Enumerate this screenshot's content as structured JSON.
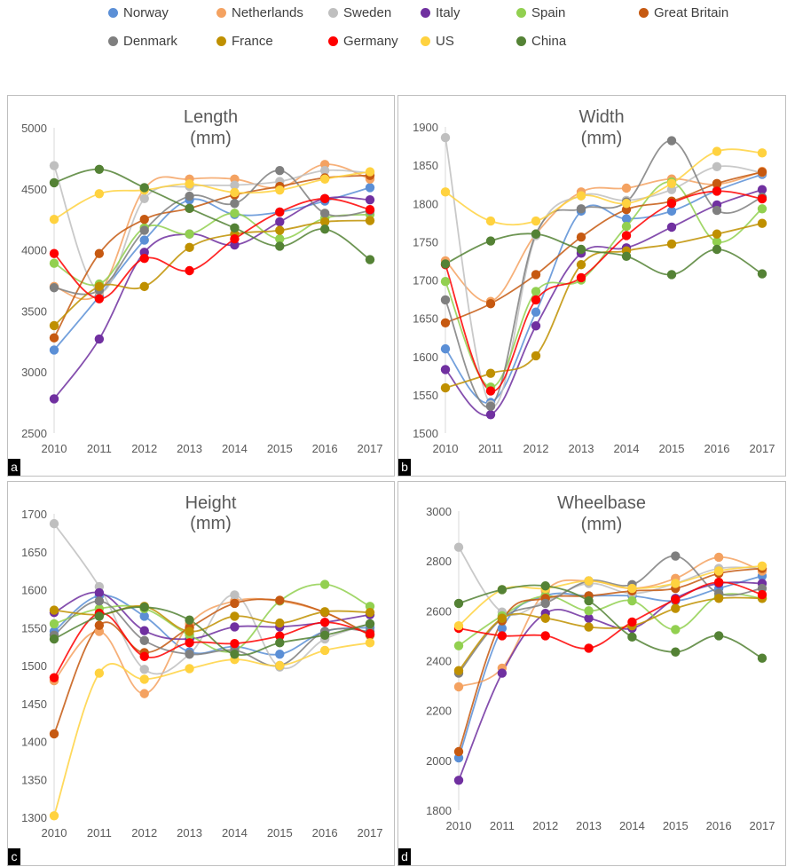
{
  "legend": [
    {
      "name": "Norway",
      "color": "#5b8fd6"
    },
    {
      "name": "Netherlands",
      "color": "#f4a261"
    },
    {
      "name": "Sweden",
      "color": "#bfbfbf"
    },
    {
      "name": "Italy",
      "color": "#7030a0"
    },
    {
      "name": "Spain",
      "color": "#92d050"
    },
    {
      "name": "Great Britain",
      "color": "#c65911"
    },
    {
      "name": "Denmark",
      "color": "#7f7f7f"
    },
    {
      "name": "France",
      "color": "#bf9000"
    },
    {
      "name": "Germany",
      "color": "#ff0000"
    },
    {
      "name": "US",
      "color": "#ffd23f"
    },
    {
      "name": "China",
      "color": "#548235"
    }
  ],
  "chart_data": [
    {
      "type": "line",
      "panel": "a",
      "title": "Length",
      "subtitle": "(mm)",
      "categories": [
        "2010",
        "2011",
        "2012",
        "2013",
        "2014",
        "2015",
        "2016",
        "2017"
      ],
      "ylim": [
        2500,
        5000
      ],
      "yticks": [
        2500,
        3000,
        3500,
        4000,
        4500,
        5000
      ],
      "series": [
        {
          "name": "Norway",
          "values": [
            3180,
            3620,
            4080,
            4410,
            4290,
            4310,
            4400,
            4510
          ]
        },
        {
          "name": "Netherlands",
          "values": [
            3700,
            3650,
            4500,
            4580,
            4580,
            4510,
            4700,
            4580
          ]
        },
        {
          "name": "Sweden",
          "values": [
            4690,
            3660,
            4420,
            4520,
            4530,
            4560,
            4650,
            4630
          ]
        },
        {
          "name": "Italy",
          "values": [
            2780,
            3270,
            3980,
            4130,
            4040,
            4230,
            4420,
            4410
          ]
        },
        {
          "name": "Spain",
          "values": [
            3890,
            3720,
            4180,
            4130,
            4300,
            4090,
            4260,
            4290
          ]
        },
        {
          "name": "Great Britain",
          "values": [
            3280,
            3970,
            4250,
            4340,
            4450,
            4520,
            4590,
            4610
          ]
        },
        {
          "name": "Denmark",
          "values": [
            3690,
            3670,
            4160,
            4440,
            4380,
            4650,
            4300,
            4320
          ]
        },
        {
          "name": "France",
          "values": [
            3380,
            3700,
            3700,
            4020,
            4130,
            4160,
            4230,
            4240
          ]
        },
        {
          "name": "Germany",
          "values": [
            3970,
            3600,
            3930,
            3830,
            4090,
            4310,
            4420,
            4330
          ]
        },
        {
          "name": "US",
          "values": [
            4250,
            4460,
            4490,
            4540,
            4470,
            4490,
            4580,
            4640
          ]
        },
        {
          "name": "China",
          "values": [
            4550,
            4660,
            4510,
            4340,
            4180,
            4030,
            4170,
            3920
          ]
        }
      ]
    },
    {
      "type": "line",
      "panel": "b",
      "title": "Width",
      "subtitle": "(mm)",
      "categories": [
        "2010",
        "2011",
        "2012",
        "2013",
        "2014",
        "2015",
        "2016",
        "2017"
      ],
      "ylim": [
        1500,
        1900
      ],
      "yticks": [
        1500,
        1550,
        1600,
        1650,
        1700,
        1750,
        1800,
        1850,
        1900
      ],
      "series": [
        {
          "name": "Norway",
          "values": [
            1610,
            1540,
            1658,
            1790,
            1780,
            1790,
            1817,
            1838
          ]
        },
        {
          "name": "Netherlands",
          "values": [
            1725,
            1672,
            1760,
            1815,
            1820,
            1832,
            1825,
            1842
          ]
        },
        {
          "name": "Sweden",
          "values": [
            1886,
            1537,
            1758,
            1810,
            1804,
            1818,
            1848,
            1840
          ]
        },
        {
          "name": "Italy",
          "values": [
            1583,
            1524,
            1640,
            1735,
            1742,
            1769,
            1798,
            1818
          ]
        },
        {
          "name": "Spain",
          "values": [
            1698,
            1560,
            1685,
            1700,
            1770,
            1828,
            1750,
            1793
          ]
        },
        {
          "name": "Great Britain",
          "values": [
            1644,
            1669,
            1707,
            1756,
            1792,
            1803,
            1826,
            1841
          ]
        },
        {
          "name": "Denmark",
          "values": [
            1674,
            1535,
            1760,
            1793,
            1802,
            1882,
            1791,
            1808
          ]
        },
        {
          "name": "France",
          "values": [
            1559,
            1578,
            1601,
            1720,
            1738,
            1747,
            1760,
            1774
          ]
        },
        {
          "name": "Germany",
          "values": [
            1720,
            1555,
            1674,
            1703,
            1758,
            1800,
            1816,
            1806
          ]
        },
        {
          "name": "US",
          "values": [
            1815,
            1777,
            1777,
            1810,
            1800,
            1826,
            1868,
            1866
          ]
        },
        {
          "name": "China",
          "values": [
            1721,
            1751,
            1760,
            1740,
            1731,
            1707,
            1740,
            1708
          ]
        }
      ]
    },
    {
      "type": "line",
      "panel": "c",
      "title": "Height",
      "subtitle": "(mm)",
      "categories": [
        "2010",
        "2011",
        "2012",
        "2013",
        "2014",
        "2015",
        "2016",
        "2017"
      ],
      "ylim": [
        1300,
        1700
      ],
      "yticks": [
        1300,
        1350,
        1400,
        1450,
        1500,
        1550,
        1600,
        1650,
        1700
      ],
      "series": [
        {
          "name": "Norway",
          "values": [
            1545,
            1592,
            1565,
            1518,
            1525,
            1515,
            1545,
            1550
          ]
        },
        {
          "name": "Netherlands",
          "values": [
            1480,
            1545,
            1463,
            1555,
            1585,
            1585,
            1570,
            1540
          ]
        },
        {
          "name": "Sweden",
          "values": [
            1687,
            1604,
            1495,
            1515,
            1593,
            1498,
            1535,
            1555
          ]
        },
        {
          "name": "Italy",
          "values": [
            1570,
            1596,
            1546,
            1535,
            1551,
            1551,
            1557,
            1567
          ]
        },
        {
          "name": "Spain",
          "values": [
            1555,
            1575,
            1575,
            1540,
            1520,
            1585,
            1607,
            1578
          ]
        },
        {
          "name": "Great Britain",
          "values": [
            1410,
            1553,
            1517,
            1550,
            1582,
            1586,
            1570,
            1540
          ]
        },
        {
          "name": "Denmark",
          "values": [
            1540,
            1585,
            1533,
            1515,
            1520,
            1500,
            1545,
            1545
          ]
        },
        {
          "name": "France",
          "values": [
            1573,
            1567,
            1578,
            1545,
            1565,
            1556,
            1571,
            1570
          ]
        },
        {
          "name": "Germany",
          "values": [
            1484,
            1569,
            1512,
            1530,
            1529,
            1539,
            1557,
            1542
          ]
        },
        {
          "name": "US",
          "values": [
            1302,
            1490,
            1482,
            1496,
            1508,
            1500,
            1520,
            1530
          ]
        },
        {
          "name": "China",
          "values": [
            1535,
            1565,
            1577,
            1560,
            1515,
            1530,
            1540,
            1555
          ]
        }
      ]
    },
    {
      "type": "line",
      "panel": "d",
      "title": "Wheelbase",
      "subtitle": "(mm)",
      "categories": [
        "2010",
        "2011",
        "2012",
        "2013",
        "2014",
        "2015",
        "2016",
        "2017"
      ],
      "ylim": [
        1800,
        3000
      ],
      "yticks": [
        1800,
        2000,
        2200,
        2400,
        2600,
        2800,
        3000
      ],
      "series": [
        {
          "name": "Norway",
          "values": [
            2010,
            2530,
            2660,
            2660,
            2660,
            2640,
            2690,
            2740
          ]
        },
        {
          "name": "Netherlands",
          "values": [
            2295,
            2370,
            2680,
            2720,
            2690,
            2730,
            2815,
            2760
          ]
        },
        {
          "name": "Sweden",
          "values": [
            2855,
            2595,
            2640,
            2710,
            2670,
            2710,
            2770,
            2770
          ]
        },
        {
          "name": "Italy",
          "values": [
            1920,
            2350,
            2590,
            2570,
            2530,
            2650,
            2710,
            2710
          ]
        },
        {
          "name": "Spain",
          "values": [
            2460,
            2580,
            2660,
            2600,
            2640,
            2525,
            2660,
            2650
          ]
        },
        {
          "name": "Great Britain",
          "values": [
            2035,
            2560,
            2650,
            2660,
            2680,
            2690,
            2750,
            2770
          ]
        },
        {
          "name": "Denmark",
          "values": [
            2350,
            2570,
            2630,
            2720,
            2705,
            2820,
            2670,
            2690
          ]
        },
        {
          "name": "France",
          "values": [
            2360,
            2570,
            2570,
            2535,
            2540,
            2610,
            2650,
            2650
          ]
        },
        {
          "name": "Germany",
          "values": [
            2530,
            2500,
            2500,
            2450,
            2555,
            2645,
            2715,
            2665
          ]
        },
        {
          "name": "US",
          "values": [
            2540,
            2685,
            2690,
            2720,
            2690,
            2710,
            2760,
            2780
          ]
        },
        {
          "name": "China",
          "values": [
            2630,
            2685,
            2700,
            2640,
            2495,
            2435,
            2500,
            2410
          ]
        }
      ]
    }
  ]
}
